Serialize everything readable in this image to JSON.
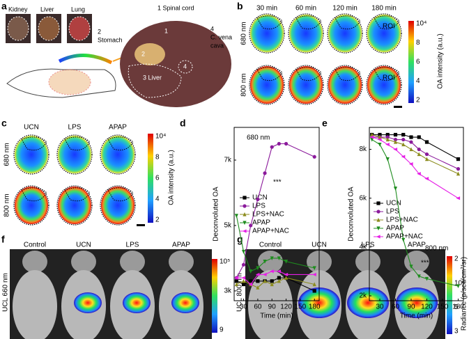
{
  "panel_labels": [
    "a",
    "b",
    "c",
    "d",
    "e",
    "f",
    "g"
  ],
  "panel_a": {
    "organs": [
      "Kidney",
      "Liver",
      "Lung"
    ],
    "stomach": [
      "2",
      "Stomach"
    ],
    "spinal_cord": "1 Spinal cord",
    "vena_cava": [
      "4",
      "C. vena",
      "cava"
    ],
    "section": [
      "1",
      "2",
      "3 Liver",
      "4"
    ]
  },
  "panel_b": {
    "times": [
      "30 min",
      "60 min",
      "120 min",
      "180 min"
    ],
    "rows": [
      "680 nm",
      "800 nm"
    ],
    "roi": "ROI",
    "colorbar": {
      "ticks": [
        "10⁴",
        "8",
        "6",
        "4",
        "2"
      ],
      "label": "OA intensity (a.u.)"
    }
  },
  "panel_c": {
    "columns": [
      "UCN",
      "LPS",
      "APAP"
    ],
    "rows": [
      "680 nm",
      "800 nm"
    ],
    "colorbar": {
      "ticks": [
        "10⁴",
        "8",
        "6",
        "4",
        "2"
      ],
      "label": "OA intensity (a.u.)"
    }
  },
  "panel_f": {
    "columns": [
      "Control",
      "UCN",
      "LPS",
      "APAP"
    ],
    "row": "UCL 660 nm",
    "colorbar": {
      "ticks": [
        "10⁵",
        "9"
      ]
    }
  },
  "panel_g": {
    "columns": [
      "Control",
      "UCN",
      "LPS",
      "APAP"
    ],
    "row": "UCL 800 nm",
    "colorbar": {
      "ticks": [
        "2",
        "10⁸",
        "5",
        "3"
      ],
      "label": "Radiance (p/sec/cm²/sr)"
    }
  },
  "chart_data": [
    {
      "type": "line",
      "annotations": [
        "680 nm",
        "***"
      ],
      "x_label": "Time (min)",
      "y_label": "Deconvoluted OA",
      "x": [
        15,
        30,
        45,
        60,
        75,
        90,
        105,
        120,
        180
      ],
      "xlim": [
        10,
        190
      ],
      "xticks": [
        30,
        60,
        90,
        120,
        150,
        180
      ],
      "ylim": [
        2700,
        8000
      ],
      "yticks": [
        {
          "value": 3000,
          "label": "3k"
        },
        {
          "value": 5000,
          "label": "5k"
        },
        {
          "value": 7000,
          "label": "7k"
        }
      ],
      "legend": "center left",
      "series": [
        {
          "name": "UCN",
          "color": "#000000",
          "values": [
            3300,
            3200,
            3300,
            3300,
            3300,
            3300,
            3400,
            3400,
            3000
          ]
        },
        {
          "name": "LPS",
          "color": "#8b1a9b",
          "values": [
            3400,
            3800,
            5000,
            5800,
            6600,
            7400,
            7500,
            7500,
            7100
          ]
        },
        {
          "name": "LPS+NAC",
          "color": "#8c8c1e",
          "values": [
            3200,
            3300,
            3200,
            3100,
            3300,
            3200,
            3300,
            3400,
            3200
          ]
        },
        {
          "name": "APAP",
          "color": "#1e8c1e",
          "values": [
            5300,
            4200,
            3600,
            3700,
            3900,
            4000,
            4000,
            3900,
            3700
          ]
        },
        {
          "name": "APAP+NAC",
          "color": "#e61ee6",
          "values": [
            3400,
            3400,
            3200,
            3500,
            3500,
            3600,
            3600,
            3500,
            3500
          ]
        }
      ]
    },
    {
      "type": "line",
      "annotations": [
        "800 nm",
        "***"
      ],
      "x_label": "Time (min)",
      "y_label": "Deconvoluted OA",
      "x": [
        15,
        30,
        45,
        60,
        75,
        90,
        105,
        120,
        180
      ],
      "xlim": [
        10,
        190
      ],
      "xticks": [
        30,
        60,
        90,
        120,
        150,
        180
      ],
      "ylim": [
        1800,
        8900
      ],
      "yticks": [
        {
          "value": 2000,
          "label": "2k"
        },
        {
          "value": 4000,
          "label": "4k"
        },
        {
          "value": 6000,
          "label": "6k"
        },
        {
          "value": 8000,
          "label": "8k"
        }
      ],
      "legend": "center left",
      "series": [
        {
          "name": "UCN",
          "color": "#000000",
          "values": [
            8600,
            8600,
            8600,
            8600,
            8600,
            8500,
            8500,
            8300,
            7600
          ]
        },
        {
          "name": "LPS",
          "color": "#8b1a9b",
          "values": [
            8500,
            8500,
            8500,
            8400,
            8400,
            8300,
            8000,
            7800,
            7200
          ]
        },
        {
          "name": "LPS+NAC",
          "color": "#8c8c1e",
          "values": [
            8600,
            8500,
            8400,
            8300,
            8200,
            8000,
            7800,
            7600,
            7000
          ]
        },
        {
          "name": "APAP",
          "color": "#1e8c1e",
          "values": [
            8400,
            8200,
            7600,
            6400,
            4300,
            3200,
            2800,
            2700,
            2400
          ]
        },
        {
          "name": "APAP+NAC",
          "color": "#e61ee6",
          "values": [
            8500,
            8400,
            8200,
            8000,
            7700,
            7400,
            7000,
            6800,
            6000
          ]
        }
      ]
    }
  ]
}
